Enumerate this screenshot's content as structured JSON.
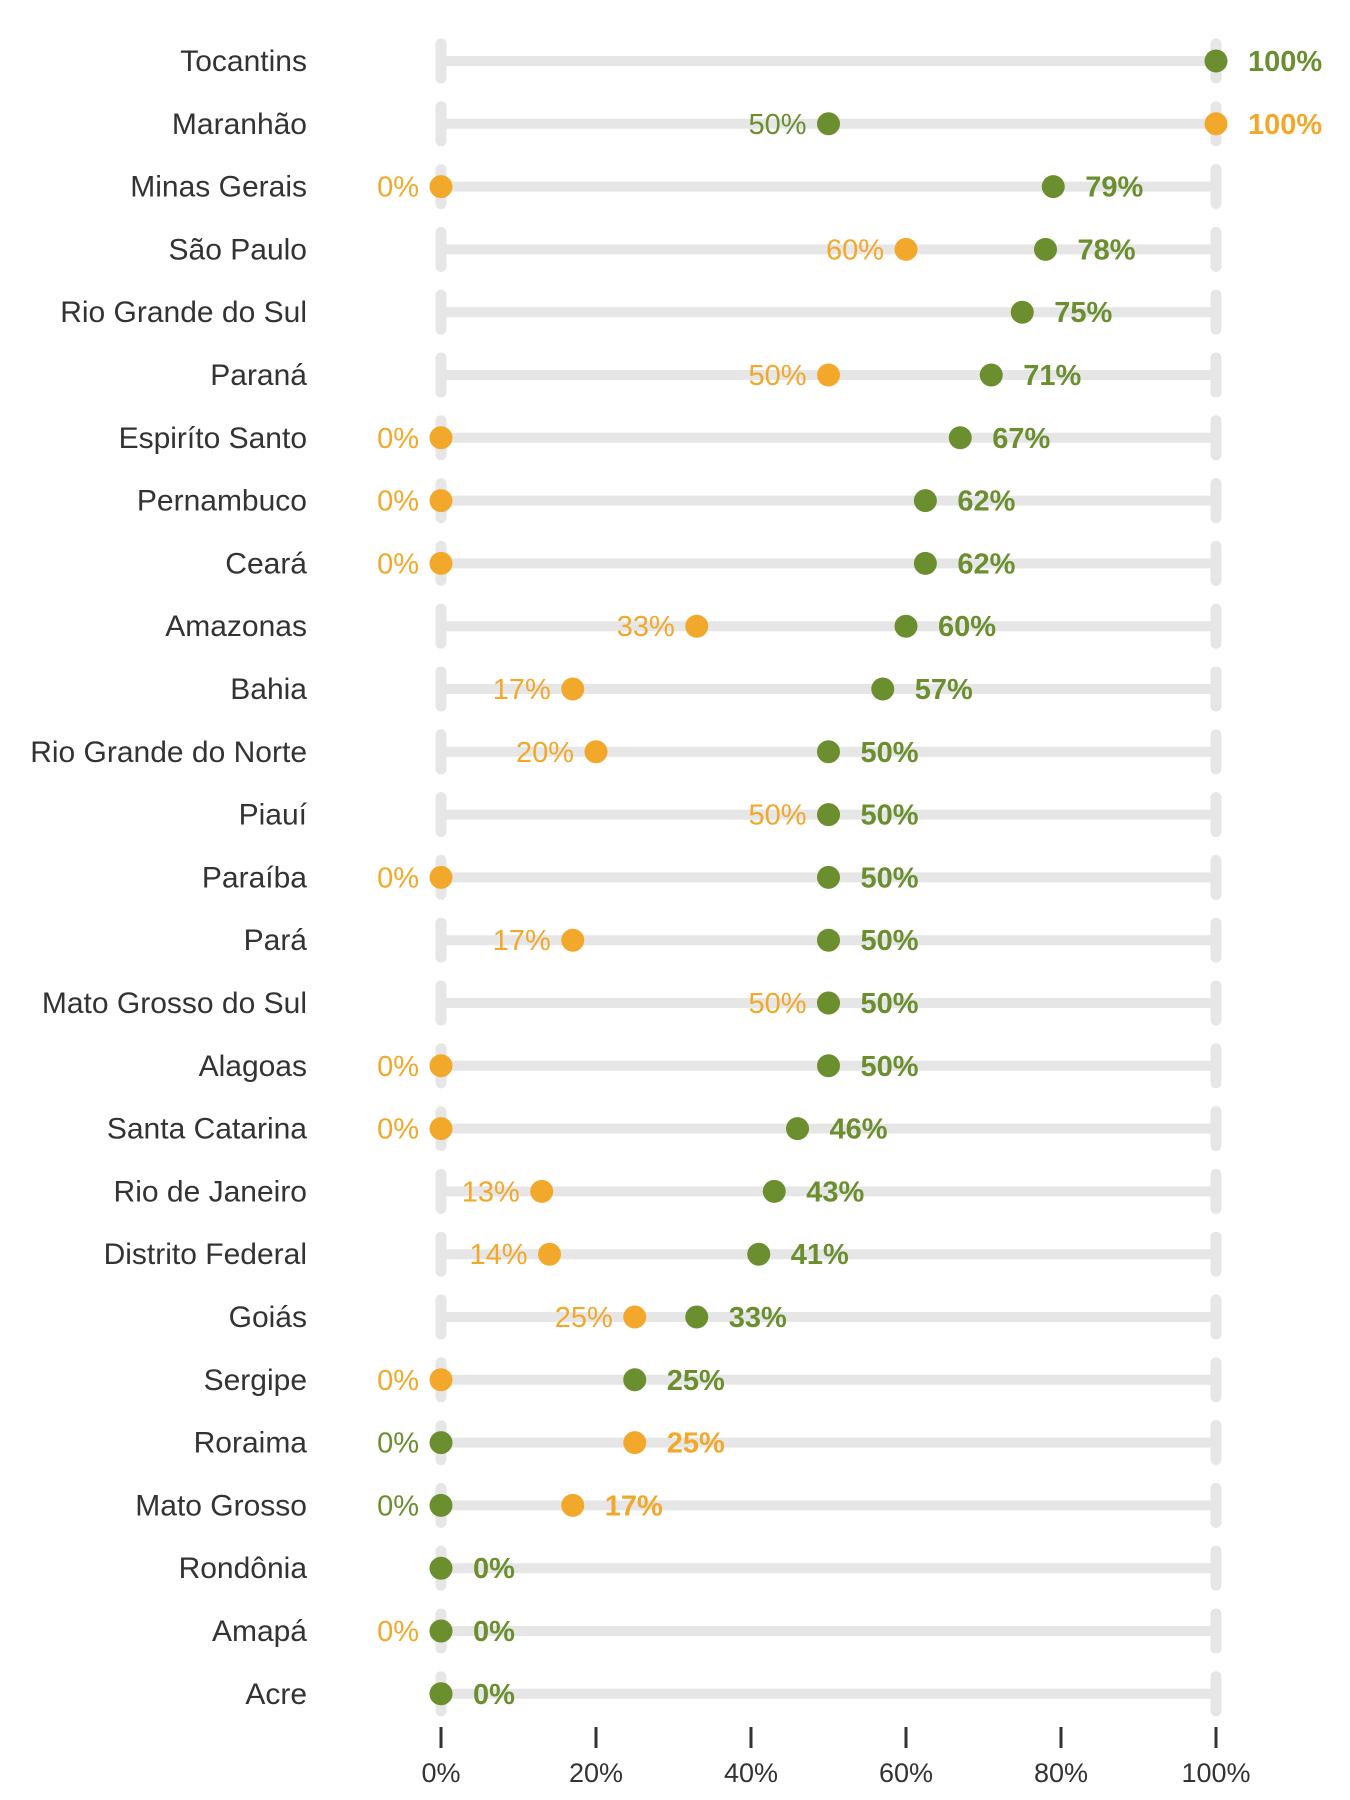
{
  "chart_data": {
    "type": "dumbbell",
    "xlim": [
      0,
      100
    ],
    "x_ticks": [
      0,
      20,
      40,
      60,
      80,
      100
    ],
    "x_tick_labels": [
      "0%",
      "20%",
      "40%",
      "60%",
      "80%",
      "100%"
    ],
    "colors": {
      "green": "#6b8e2f",
      "orange": "#f2a82a",
      "track": "#e6e6e6",
      "axis": "#333333"
    },
    "rows": [
      {
        "state": "Tocantins",
        "green": 100,
        "orange": null,
        "green_label": "100%",
        "orange_label": "",
        "bold": "green"
      },
      {
        "state": "Maranhão",
        "green": 50,
        "orange": 100,
        "green_label": "50%",
        "orange_label": "100%",
        "bold": "orange"
      },
      {
        "state": "Minas Gerais",
        "green": 79,
        "orange": 0,
        "green_label": "79%",
        "orange_label": "0%",
        "bold": "green"
      },
      {
        "state": "São Paulo",
        "green": 78,
        "orange": 60,
        "green_label": "78%",
        "orange_label": "60%",
        "bold": "green"
      },
      {
        "state": "Rio Grande do Sul",
        "green": 75,
        "orange": null,
        "green_label": "75%",
        "orange_label": "",
        "bold": "green"
      },
      {
        "state": "Paraná",
        "green": 71,
        "orange": 50,
        "green_label": "71%",
        "orange_label": "50%",
        "bold": "green"
      },
      {
        "state": "Espiríto Santo",
        "green": 67,
        "orange": 0,
        "green_label": "67%",
        "orange_label": "0%",
        "bold": "green"
      },
      {
        "state": "Pernambuco",
        "green": 62.5,
        "orange": 0,
        "green_label": "62%",
        "orange_label": "0%",
        "bold": "green"
      },
      {
        "state": "Ceará",
        "green": 62.5,
        "orange": 0,
        "green_label": "62%",
        "orange_label": "0%",
        "bold": "green"
      },
      {
        "state": "Amazonas",
        "green": 60,
        "orange": 33,
        "green_label": "60%",
        "orange_label": "33%",
        "bold": "green"
      },
      {
        "state": "Bahia",
        "green": 57,
        "orange": 17,
        "green_label": "57%",
        "orange_label": "17%",
        "bold": "green"
      },
      {
        "state": "Rio Grande do Norte",
        "green": 50,
        "orange": 20,
        "green_label": "50%",
        "orange_label": "20%",
        "bold": "green"
      },
      {
        "state": "Piauí",
        "green": 50,
        "orange": 50,
        "green_label": "50%",
        "orange_label": "50%",
        "bold": "green"
      },
      {
        "state": "Paraíba",
        "green": 50,
        "orange": 0,
        "green_label": "50%",
        "orange_label": "0%",
        "bold": "green"
      },
      {
        "state": "Pará",
        "green": 50,
        "orange": 17,
        "green_label": "50%",
        "orange_label": "17%",
        "bold": "green"
      },
      {
        "state": "Mato Grosso do Sul",
        "green": 50,
        "orange": 50,
        "green_label": "50%",
        "orange_label": "50%",
        "bold": "green"
      },
      {
        "state": "Alagoas",
        "green": 50,
        "orange": 0,
        "green_label": "50%",
        "orange_label": "0%",
        "bold": "green"
      },
      {
        "state": "Santa Catarina",
        "green": 46,
        "orange": 0,
        "green_label": "46%",
        "orange_label": "0%",
        "bold": "green"
      },
      {
        "state": "Rio de Janeiro",
        "green": 43,
        "orange": 13,
        "green_label": "43%",
        "orange_label": "13%",
        "bold": "green"
      },
      {
        "state": "Distrito Federal",
        "green": 41,
        "orange": 14,
        "green_label": "41%",
        "orange_label": "14%",
        "bold": "green"
      },
      {
        "state": "Goiás",
        "green": 33,
        "orange": 25,
        "green_label": "33%",
        "orange_label": "25%",
        "bold": "green"
      },
      {
        "state": "Sergipe",
        "green": 25,
        "orange": 0,
        "green_label": "25%",
        "orange_label": "0%",
        "bold": "green"
      },
      {
        "state": "Roraima",
        "green": 0,
        "orange": 25,
        "green_label": "0%",
        "orange_label": "25%",
        "bold": "orange"
      },
      {
        "state": "Mato Grosso",
        "green": 0,
        "orange": 17,
        "green_label": "0%",
        "orange_label": "17%",
        "bold": "orange"
      },
      {
        "state": "Rondônia",
        "green": 0,
        "orange": null,
        "green_label": "0%",
        "orange_label": "",
        "bold": "green"
      },
      {
        "state": "Amapá",
        "green": 0,
        "orange": 0,
        "green_label": "0%",
        "orange_label": "0%",
        "bold": "green"
      },
      {
        "state": "Acre",
        "green": 0,
        "orange": 0,
        "green_label": "0%",
        "orange_label": "",
        "bold": "green"
      }
    ]
  }
}
